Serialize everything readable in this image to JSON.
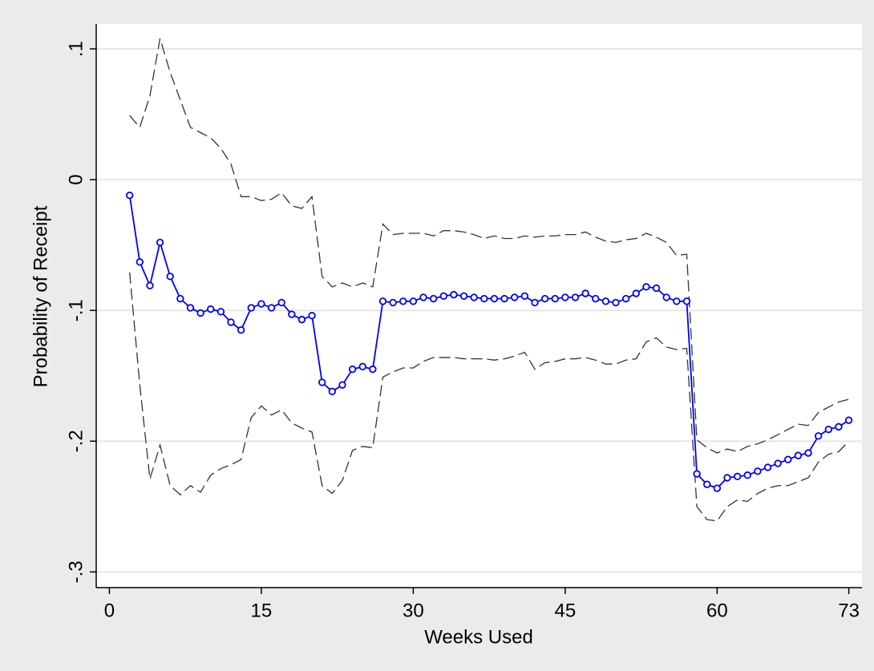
{
  "chart_data": {
    "type": "line",
    "x_label": "Weeks Used",
    "y_label": "Probability of Receipt",
    "x": [
      2,
      3,
      4,
      5,
      6,
      7,
      8,
      9,
      10,
      11,
      12,
      13,
      14,
      15,
      16,
      17,
      18,
      19,
      20,
      21,
      22,
      23,
      24,
      25,
      26,
      27,
      28,
      29,
      30,
      31,
      32,
      33,
      34,
      35,
      36,
      37,
      38,
      39,
      40,
      41,
      42,
      43,
      44,
      45,
      46,
      47,
      48,
      49,
      50,
      51,
      52,
      53,
      54,
      55,
      56,
      57,
      58,
      59,
      60,
      61,
      62,
      63,
      64,
      65,
      66,
      67,
      68,
      69,
      70,
      71,
      72,
      73
    ],
    "series": [
      {
        "color": "#0000ff",
        "marker": "circle",
        "linestyle": "solid",
        "values": [
          -0.012,
          -0.063,
          -0.081,
          -0.048,
          -0.074,
          -0.091,
          -0.098,
          -0.102,
          -0.099,
          -0.101,
          -0.109,
          -0.115,
          -0.098,
          -0.095,
          -0.098,
          -0.094,
          -0.103,
          -0.107,
          -0.104,
          -0.155,
          -0.162,
          -0.157,
          -0.145,
          -0.143,
          -0.145,
          -0.093,
          -0.094,
          -0.093,
          -0.093,
          -0.09,
          -0.091,
          -0.089,
          -0.088,
          -0.089,
          -0.09,
          -0.091,
          -0.091,
          -0.091,
          -0.09,
          -0.089,
          -0.094,
          -0.091,
          -0.091,
          -0.09,
          -0.09,
          -0.087,
          -0.091,
          -0.093,
          -0.094,
          -0.091,
          -0.087,
          -0.082,
          -0.083,
          -0.09,
          -0.093,
          -0.093,
          -0.225,
          -0.233,
          -0.236,
          -0.228,
          -0.227,
          -0.226,
          -0.223,
          -0.22,
          -0.217,
          -0.214,
          -0.211,
          -0.209,
          -0.196,
          -0.191,
          -0.189,
          -0.184
        ]
      },
      {
        "color": "#333333",
        "linestyle": "dashed",
        "values": [
          0.049,
          0.04,
          0.064,
          0.108,
          0.082,
          0.061,
          0.04,
          0.036,
          0.032,
          0.024,
          0.012,
          -0.013,
          -0.013,
          -0.016,
          -0.015,
          -0.01,
          -0.02,
          -0.022,
          -0.013,
          -0.074,
          -0.082,
          -0.079,
          -0.082,
          -0.079,
          -0.082,
          -0.034,
          -0.042,
          -0.041,
          -0.041,
          -0.041,
          -0.043,
          -0.039,
          -0.039,
          -0.04,
          -0.042,
          -0.045,
          -0.043,
          -0.045,
          -0.045,
          -0.043,
          -0.044,
          -0.043,
          -0.043,
          -0.042,
          -0.042,
          -0.04,
          -0.044,
          -0.047,
          -0.048,
          -0.046,
          -0.045,
          -0.041,
          -0.044,
          -0.048,
          -0.058,
          -0.057,
          -0.199,
          -0.205,
          -0.209,
          -0.206,
          -0.208,
          -0.204,
          -0.202,
          -0.199,
          -0.195,
          -0.191,
          -0.187,
          -0.188,
          -0.178,
          -0.174,
          -0.17,
          -0.168
        ]
      },
      {
        "color": "#333333",
        "linestyle": "dashed",
        "values": [
          -0.071,
          -0.157,
          -0.229,
          -0.203,
          -0.234,
          -0.241,
          -0.234,
          -0.239,
          -0.226,
          -0.221,
          -0.218,
          -0.214,
          -0.182,
          -0.173,
          -0.18,
          -0.176,
          -0.186,
          -0.19,
          -0.193,
          -0.234,
          -0.24,
          -0.23,
          -0.207,
          -0.204,
          -0.205,
          -0.151,
          -0.147,
          -0.144,
          -0.144,
          -0.139,
          -0.136,
          -0.136,
          -0.136,
          -0.137,
          -0.137,
          -0.137,
          -0.138,
          -0.137,
          -0.135,
          -0.132,
          -0.145,
          -0.14,
          -0.139,
          -0.137,
          -0.137,
          -0.136,
          -0.138,
          -0.141,
          -0.141,
          -0.138,
          -0.137,
          -0.124,
          -0.121,
          -0.128,
          -0.13,
          -0.129,
          -0.25,
          -0.26,
          -0.261,
          -0.25,
          -0.245,
          -0.246,
          -0.24,
          -0.236,
          -0.234,
          -0.234,
          -0.231,
          -0.228,
          -0.216,
          -0.21,
          -0.208,
          -0.2
        ]
      }
    ],
    "xlim": [
      -1.3,
      74.3
    ],
    "ylim": [
      -0.312,
      0.119
    ],
    "xticks": [
      0,
      15,
      30,
      45,
      60,
      73
    ],
    "yticks": [
      {
        "value": -0.3,
        "label": "-.3"
      },
      {
        "value": -0.2,
        "label": "-.2"
      },
      {
        "value": -0.1,
        "label": "-.1"
      },
      0,
      {
        "value": 0.1,
        "label": ".1"
      }
    ],
    "grid": true
  }
}
